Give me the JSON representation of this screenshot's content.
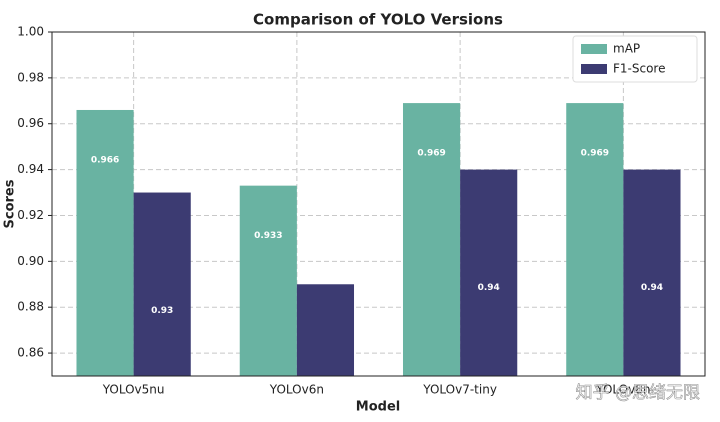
{
  "chart_data": {
    "type": "bar",
    "title": "Comparison of YOLO Versions",
    "x_label": "Model",
    "y_label": "Scores",
    "categories": [
      "YOLOv5nu",
      "YOLOv6n",
      "YOLOv7-tiny",
      "YOLOv8n"
    ],
    "series": [
      {
        "name": "mAP",
        "color": "#69b3a2",
        "values": [
          0.966,
          0.933,
          0.969,
          0.969
        ]
      },
      {
        "name": "F1-Score",
        "color": "#3c3b72",
        "values": [
          0.93,
          0.89,
          0.94,
          0.94
        ]
      }
    ],
    "ylim": [
      0.85,
      1.0
    ],
    "yticks": [
      {
        "value": 0.86,
        "label": "0.86"
      },
      {
        "value": 0.88,
        "label": "0.88"
      },
      {
        "value": 0.9,
        "label": "0.90"
      },
      {
        "value": 0.92,
        "label": "0.92"
      },
      {
        "value": 0.94,
        "label": "0.94"
      },
      {
        "value": 0.96,
        "label": "0.96"
      },
      {
        "value": 0.98,
        "label": "0.98"
      },
      {
        "value": 1.0,
        "label": "1.00"
      }
    ],
    "grid": true,
    "legend": "upper right",
    "watermark": "知乎 @思绪无限"
  }
}
